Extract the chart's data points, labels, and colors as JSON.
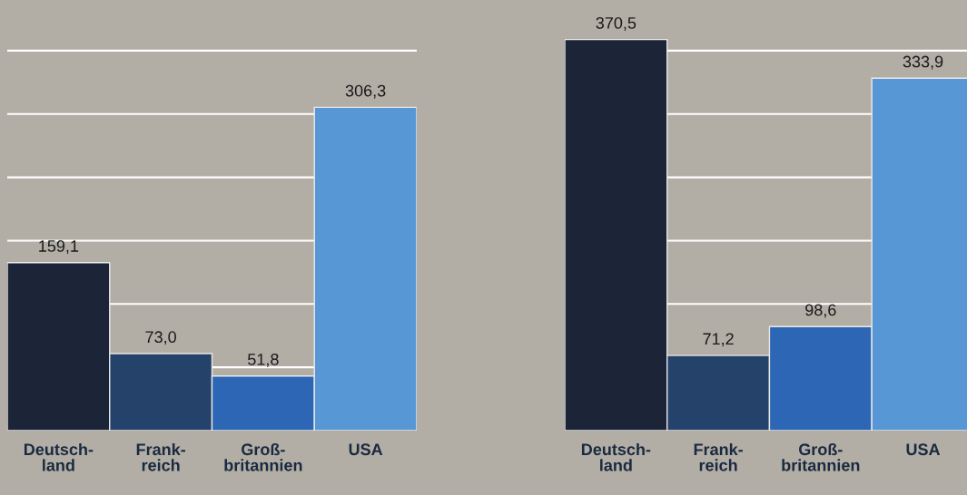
{
  "chart_data": [
    {
      "type": "bar",
      "categories": [
        "Deutsch-\nland",
        "Frank-\nreich",
        "Groß-\nbritannien",
        "USA"
      ],
      "values": [
        159.1,
        73.0,
        51.8,
        306.3
      ],
      "value_labels": [
        "159,1",
        "73,0",
        "51,8",
        "306,3"
      ],
      "colors": [
        "#1c2538",
        "#24426a",
        "#2c66b4",
        "#5897d6"
      ],
      "ylim": [
        0,
        408
      ],
      "grid": "y",
      "tick_labels": "x"
    },
    {
      "type": "bar",
      "categories": [
        "Deutsch-\nland",
        "Frank-\nreich",
        "Groß-\nbritannien",
        "USA"
      ],
      "values": [
        370.5,
        71.2,
        98.6,
        333.9
      ],
      "value_labels": [
        "370,5",
        "71,2",
        "98,6",
        "333,9"
      ],
      "colors": [
        "#1c2538",
        "#24426a",
        "#2c66b4",
        "#5897d6"
      ],
      "ylim": [
        0,
        408
      ],
      "grid": "y",
      "tick_labels": "x"
    }
  ]
}
